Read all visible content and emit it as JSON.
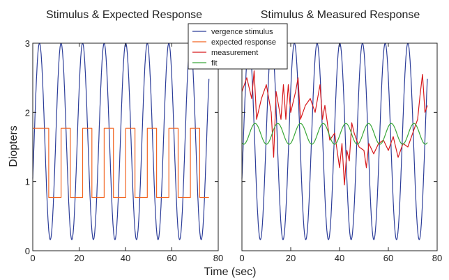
{
  "figure": {
    "ylabel": "Diopters",
    "xlabel": "Time (sec)"
  },
  "legend": {
    "placement": "top-center",
    "items": [
      {
        "label": "vergence stimulus",
        "color": "#2c3d99"
      },
      {
        "label": "expected response",
        "color": "#f26522"
      },
      {
        "label": "measurement",
        "color": "#d7191c"
      },
      {
        "label": "fit",
        "color": "#3aa83a"
      }
    ]
  },
  "chart_data": [
    {
      "type": "line",
      "title": "Stimulus & Expected Response",
      "xlabel": "Time (sec)",
      "ylabel": "Diopters",
      "xlim": [
        0,
        80
      ],
      "ylim": [
        0,
        3
      ],
      "xticks": [
        0,
        20,
        40,
        60,
        80
      ],
      "yticks": [
        0,
        1,
        2,
        3
      ],
      "grid": false,
      "series": [
        {
          "name": "vergence stimulus",
          "color": "#2c3d99",
          "form": "sinusoid",
          "mean": 1.58,
          "amplitude": 1.42,
          "period_sec": 9.3,
          "x_range": [
            0,
            76
          ],
          "peaks_x": [
            2.9,
            12.2,
            21.5,
            30.8,
            40.1,
            49.4,
            58.7,
            68.0
          ]
        },
        {
          "name": "expected response",
          "color": "#f26522",
          "form": "square wave",
          "high": 1.77,
          "low": 0.77,
          "x_range": [
            0,
            76
          ],
          "x": [
            0,
            6.9,
            6.9,
            12.2,
            12.2,
            16.2,
            16.2,
            21.5,
            21.5,
            25.5,
            25.5,
            30.8,
            30.8,
            34.8,
            34.8,
            40.1,
            40.1,
            44.1,
            44.1,
            49.4,
            49.4,
            53.4,
            53.4,
            58.7,
            58.7,
            62.7,
            62.7,
            68.0,
            68.0,
            72.0,
            72.0,
            76
          ],
          "y": [
            1.77,
            1.77,
            0.77,
            0.77,
            1.77,
            1.77,
            0.77,
            0.77,
            1.77,
            1.77,
            0.77,
            0.77,
            1.77,
            1.77,
            0.77,
            0.77,
            1.77,
            1.77,
            0.77,
            0.77,
            1.77,
            1.77,
            0.77,
            0.77,
            1.77,
            1.77,
            0.77,
            0.77,
            1.77,
            1.77,
            0.77,
            0.77
          ]
        }
      ]
    },
    {
      "type": "line",
      "title": "Stimulus & Measured Response",
      "xlabel": "Time (sec)",
      "ylabel": "Diopters",
      "xlim": [
        0,
        80
      ],
      "ylim": [
        0,
        3
      ],
      "xticks": [
        0,
        20,
        40,
        60,
        80
      ],
      "yticks": [
        0,
        1,
        2,
        3
      ],
      "grid": false,
      "series": [
        {
          "name": "vergence stimulus",
          "color": "#2c3d99",
          "form": "sinusoid",
          "mean": 1.58,
          "amplitude": 1.42,
          "period_sec": 9.3,
          "x_range": [
            0,
            76
          ],
          "peaks_x": [
            2.9,
            12.2,
            21.5,
            30.8,
            40.1,
            49.4,
            58.7,
            68.0
          ]
        },
        {
          "name": "measurement",
          "color": "#d7191c",
          "x": [
            0,
            2,
            4,
            5,
            6,
            8,
            10,
            12,
            13,
            14,
            16,
            17,
            18,
            19,
            20,
            22,
            23,
            24,
            26,
            28,
            30,
            32,
            33,
            34,
            36,
            38,
            40,
            41,
            42,
            43,
            44,
            45,
            46,
            48,
            50,
            51,
            52,
            54,
            56,
            58,
            60,
            62,
            64,
            66,
            68,
            70,
            72,
            73,
            74,
            75,
            76
          ],
          "y": [
            2.3,
            2.5,
            2.2,
            2.6,
            1.9,
            2.2,
            2.4,
            2.0,
            1.35,
            2.3,
            1.9,
            2.4,
            1.9,
            2.4,
            2.0,
            2.3,
            2.5,
            1.9,
            2.1,
            2.2,
            2.0,
            2.4,
            1.9,
            2.1,
            1.6,
            1.7,
            1.2,
            1.55,
            0.95,
            1.45,
            1.3,
            1.85,
            1.7,
            1.5,
            1.45,
            1.2,
            1.55,
            1.4,
            1.55,
            1.6,
            1.45,
            1.65,
            1.35,
            1.55,
            1.5,
            1.7,
            1.9,
            2.25,
            2.55,
            2.0,
            2.1
          ]
        },
        {
          "name": "fit",
          "color": "#3aa83a",
          "form": "sinusoid",
          "mean": 1.69,
          "amplitude": 0.15,
          "period_sec": 9.3,
          "x_range": [
            0,
            76
          ],
          "peaks_x": [
            5.4,
            14.7,
            24.0,
            33.3,
            42.6,
            51.9,
            61.2,
            70.5
          ]
        }
      ]
    }
  ]
}
